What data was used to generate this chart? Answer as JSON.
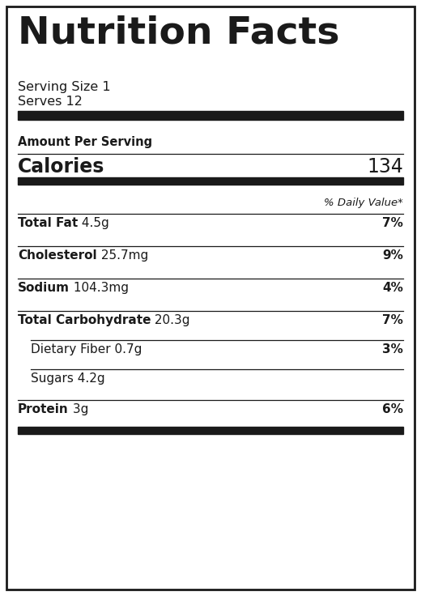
{
  "title": "Nutrition Facts",
  "serving_size": "Serving Size 1",
  "serves": "Serves 12",
  "calories_label": "Calories",
  "calories_value": "134",
  "daily_value_header": "% Daily Value*",
  "nutrients": [
    {
      "bold_label": "Total Fat",
      "amount": " 4.5g",
      "dv": "7%",
      "indent": false
    },
    {
      "bold_label": "Cholesterol",
      "amount": " 25.7mg",
      "dv": "9%",
      "indent": false
    },
    {
      "bold_label": "Sodium",
      "amount": " 104.3mg",
      "dv": "4%",
      "indent": false
    },
    {
      "bold_label": "Total Carbohydrate",
      "amount": " 20.3g",
      "dv": "7%",
      "indent": false
    },
    {
      "bold_label": "",
      "amount": "Dietary Fiber 0.7g",
      "dv": "3%",
      "indent": true
    },
    {
      "bold_label": "",
      "amount": "Sugars 4.2g",
      "dv": "",
      "indent": true
    },
    {
      "bold_label": "Protein",
      "amount": " 3g",
      "dv": "6%",
      "indent": false
    }
  ],
  "bg_color": "#ffffff",
  "border_color": "#1a1a1a",
  "text_color": "#1a1a1a",
  "thick_bar_color": "#1a1a1a",
  "thin_line_color": "#1a1a1a",
  "title_fontsize": 34,
  "serving_fontsize": 11.5,
  "calories_label_fontsize": 17,
  "calories_value_fontsize": 16,
  "dv_header_fontsize": 9.5,
  "nutrient_fontsize": 11,
  "amount_per_serving_fontsize": 10.5
}
